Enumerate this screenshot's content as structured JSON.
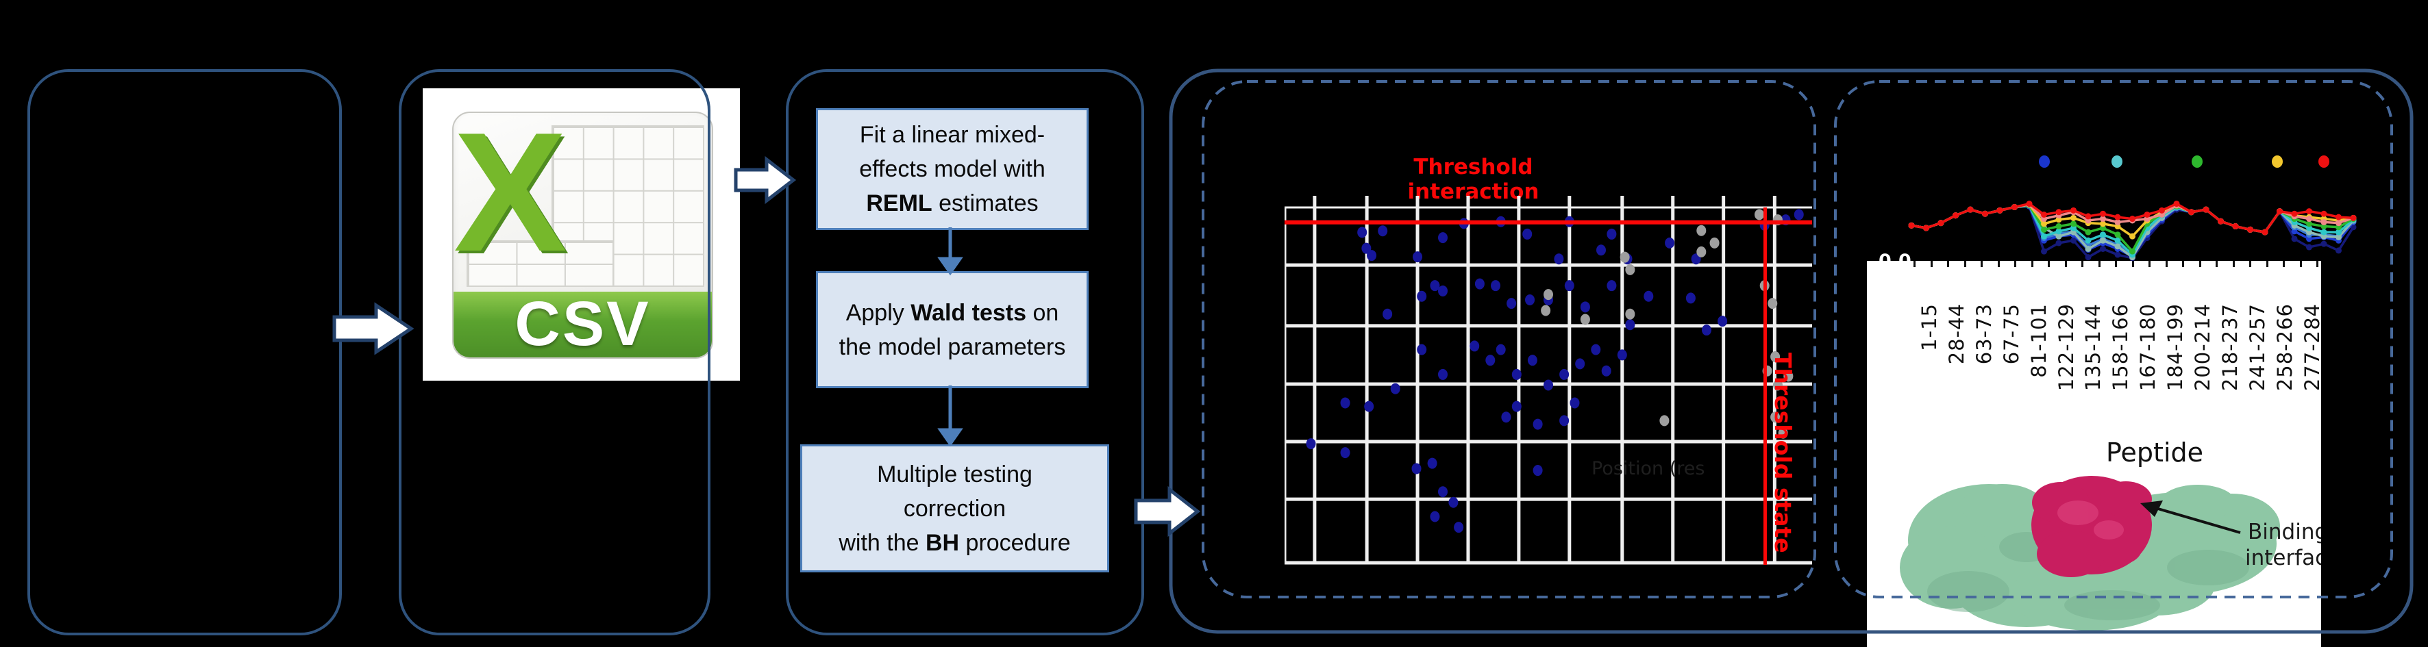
{
  "flowchart": {
    "steps": [
      {
        "name": "fit-model",
        "lines": [
          [
            {
              "t": "Fit a linear mixed-"
            }
          ],
          [
            {
              "t": "effects model with"
            }
          ],
          [
            {
              "t": "REML",
              "b": true
            },
            {
              "t": " estimates"
            }
          ]
        ]
      },
      {
        "name": "wald-tests",
        "lines": [
          [
            {
              "t": "Apply "
            },
            {
              "t": "Wald tests",
              "b": true
            },
            {
              "t": " on"
            }
          ],
          [
            {
              "t": "the model parameters"
            }
          ]
        ]
      },
      {
        "name": "multiple-testing",
        "lines": [
          [
            {
              "t": "Multiple testing"
            }
          ],
          [
            {
              "t": "correction"
            }
          ],
          [
            {
              "t": "with the "
            },
            {
              "t": "BH",
              "b": true
            },
            {
              "t": " procedure"
            }
          ]
        ]
      }
    ]
  },
  "csv_icon": {
    "letter": "X",
    "banner_label": "CSV"
  },
  "colors": {
    "box_border": "#2f537e",
    "container_border": "#36557f",
    "dashed_border": "#47699b",
    "flow_fill": "#dbe5f2",
    "flow_border": "#4e7fba",
    "threshold_red": "#fb0707",
    "dot_blue": "#16169b",
    "dot_gray": "#9f9f9f",
    "csv_green": "#5ba32f",
    "excel_x_green": "#76b82b",
    "protein_mint": "#8ec7a5",
    "protein_crimson": "#c81e5f"
  },
  "chart_data": [
    {
      "type": "scatter",
      "title": "Threshold interaction",
      "right_label": "Threshold state",
      "xlabel_faint": "Position (res",
      "grid": {
        "x": [
          0.057,
          0.156,
          0.252,
          0.348,
          0.444,
          0.54,
          0.64,
          0.736,
          0.832,
          0.929
        ],
        "y": [
          0.162,
          0.333,
          0.497,
          0.659,
          0.821
        ]
      },
      "threshold_lines": {
        "horizontal_y": 0.042,
        "vertical_x": 0.911
      },
      "series": [
        {
          "name": "interaction-points",
          "color": "#16169b",
          "points": [
            [
              0.147,
              0.07
            ],
            [
              0.186,
              0.066
            ],
            [
              0.34,
              0.045
            ],
            [
              0.41,
              0.04
            ],
            [
              0.54,
              0.04
            ],
            [
              0.3,
              0.085
            ],
            [
              0.46,
              0.075
            ],
            [
              0.62,
              0.075
            ],
            [
              0.73,
              0.1
            ],
            [
              0.91,
              0.05
            ],
            [
              0.95,
              0.035
            ],
            [
              0.975,
              0.02
            ],
            [
              0.155,
              0.115
            ],
            [
              0.165,
              0.135
            ],
            [
              0.252,
              0.139
            ],
            [
              0.6,
              0.12
            ],
            [
              0.65,
              0.145
            ],
            [
              0.78,
              0.145
            ],
            [
              0.52,
              0.145
            ],
            [
              0.195,
              0.3
            ],
            [
              0.26,
              0.25
            ],
            [
              0.285,
              0.22
            ],
            [
              0.3,
              0.235
            ],
            [
              0.37,
              0.215
            ],
            [
              0.4,
              0.22
            ],
            [
              0.43,
              0.27
            ],
            [
              0.465,
              0.26
            ],
            [
              0.5,
              0.26
            ],
            [
              0.54,
              0.22
            ],
            [
              0.57,
              0.28
            ],
            [
              0.62,
              0.22
            ],
            [
              0.655,
              0.33
            ],
            [
              0.69,
              0.25
            ],
            [
              0.77,
              0.255
            ],
            [
              0.83,
              0.32
            ],
            [
              0.8,
              0.345
            ],
            [
              0.26,
              0.4
            ],
            [
              0.3,
              0.47
            ],
            [
              0.36,
              0.39
            ],
            [
              0.39,
              0.43
            ],
            [
              0.41,
              0.4
            ],
            [
              0.44,
              0.47
            ],
            [
              0.47,
              0.43
            ],
            [
              0.5,
              0.5
            ],
            [
              0.53,
              0.47
            ],
            [
              0.56,
              0.44
            ],
            [
              0.59,
              0.4
            ],
            [
              0.61,
              0.46
            ],
            [
              0.64,
              0.415
            ],
            [
              0.55,
              0.55
            ],
            [
              0.44,
              0.56
            ],
            [
              0.42,
              0.59
            ],
            [
              0.48,
              0.61
            ],
            [
              0.53,
              0.6
            ],
            [
              0.115,
              0.55
            ],
            [
              0.21,
              0.51
            ],
            [
              0.16,
              0.56
            ],
            [
              0.05,
              0.665
            ],
            [
              0.115,
              0.69
            ],
            [
              0.25,
              0.735
            ],
            [
              0.28,
              0.72
            ],
            [
              0.3,
              0.8
            ],
            [
              0.32,
              0.83
            ],
            [
              0.285,
              0.87
            ],
            [
              0.33,
              0.9
            ],
            [
              0.48,
              0.74
            ]
          ]
        },
        {
          "name": "state-points",
          "color": "#9f9f9f",
          "points": [
            [
              0.9,
              0.02
            ],
            [
              0.935,
              0.035
            ],
            [
              0.79,
              0.065
            ],
            [
              0.815,
              0.1
            ],
            [
              0.79,
              0.125
            ],
            [
              0.645,
              0.14
            ],
            [
              0.655,
              0.175
            ],
            [
              0.5,
              0.245
            ],
            [
              0.495,
              0.29
            ],
            [
              0.57,
              0.315
            ],
            [
              0.655,
              0.3
            ],
            [
              0.91,
              0.22
            ],
            [
              0.925,
              0.27
            ],
            [
              0.93,
              0.42
            ],
            [
              0.915,
              0.46
            ],
            [
              0.935,
              0.5
            ],
            [
              0.955,
              0.475
            ],
            [
              0.93,
              0.59
            ],
            [
              0.945,
              0.635
            ],
            [
              0.72,
              0.6
            ]
          ]
        }
      ]
    },
    {
      "type": "line",
      "xlabel": "Peptide",
      "y_tick_label": "0.0",
      "legend_dot_colors": [
        "#1a35cc",
        "#58c9cf",
        "#2eb82e",
        "#f2c72e",
        "#ee1111"
      ],
      "categories": [
        "1-15",
        "28-44",
        "63-73",
        "67-75",
        "81-101",
        "122-129",
        "135-144",
        "158-166",
        "167-180",
        "184-199",
        "200-214",
        "218-237",
        "241-257",
        "258-266",
        "277-284"
      ],
      "series": [
        {
          "name": "series-navy",
          "color": "#151a7a",
          "values": [
            0.44,
            0.41,
            0.47,
            0.56,
            0.63,
            0.58,
            0.62,
            0.66,
            0.67,
            0.13,
            0.23,
            0.26,
            0.06,
            0.16,
            0.09,
            0.05,
            0.29,
            0.49,
            0.63,
            0.6,
            0.63,
            0.49,
            0.43,
            0.39,
            0.36,
            0.61,
            0.28,
            0.18,
            0.22,
            0.14,
            0.42
          ]
        },
        {
          "name": "series-blue",
          "color": "#1f3fd4",
          "values": [
            0.44,
            0.41,
            0.47,
            0.56,
            0.63,
            0.58,
            0.62,
            0.66,
            0.67,
            0.26,
            0.31,
            0.33,
            0.15,
            0.23,
            0.16,
            0.07,
            0.33,
            0.51,
            0.65,
            0.6,
            0.63,
            0.49,
            0.43,
            0.39,
            0.36,
            0.61,
            0.37,
            0.28,
            0.3,
            0.26,
            0.48
          ]
        },
        {
          "name": "series-dodger",
          "color": "#3a7bd5",
          "values": [
            0.44,
            0.41,
            0.47,
            0.56,
            0.63,
            0.58,
            0.62,
            0.66,
            0.68,
            0.29,
            0.34,
            0.37,
            0.2,
            0.28,
            0.21,
            0.08,
            0.37,
            0.53,
            0.65,
            0.6,
            0.63,
            0.49,
            0.43,
            0.39,
            0.36,
            0.61,
            0.42,
            0.33,
            0.33,
            0.31,
            0.49
          ]
        },
        {
          "name": "series-teal",
          "color": "#8fbcb4",
          "values": [
            0.44,
            0.41,
            0.47,
            0.56,
            0.63,
            0.58,
            0.62,
            0.66,
            0.68,
            0.41,
            0.31,
            0.36,
            0.16,
            0.26,
            0.19,
            0.06,
            0.36,
            0.53,
            0.66,
            0.6,
            0.63,
            0.49,
            0.43,
            0.39,
            0.36,
            0.61,
            0.44,
            0.36,
            0.31,
            0.3,
            0.5
          ]
        },
        {
          "name": "series-cyan",
          "color": "#2ec8c8",
          "values": [
            0.44,
            0.41,
            0.47,
            0.56,
            0.63,
            0.58,
            0.62,
            0.66,
            0.68,
            0.31,
            0.37,
            0.41,
            0.26,
            0.33,
            0.26,
            0.09,
            0.41,
            0.56,
            0.66,
            0.6,
            0.63,
            0.49,
            0.43,
            0.39,
            0.36,
            0.61,
            0.48,
            0.41,
            0.36,
            0.36,
            0.51
          ]
        },
        {
          "name": "series-green",
          "color": "#2eb82e",
          "values": [
            0.44,
            0.41,
            0.47,
            0.56,
            0.63,
            0.58,
            0.62,
            0.66,
            0.68,
            0.39,
            0.43,
            0.46,
            0.36,
            0.41,
            0.33,
            0.13,
            0.46,
            0.58,
            0.67,
            0.6,
            0.63,
            0.49,
            0.43,
            0.39,
            0.36,
            0.61,
            0.52,
            0.46,
            0.43,
            0.42,
            0.52
          ]
        },
        {
          "name": "series-gold",
          "color": "#f2c72e",
          "values": [
            0.44,
            0.41,
            0.47,
            0.56,
            0.63,
            0.58,
            0.62,
            0.66,
            0.69,
            0.46,
            0.51,
            0.53,
            0.47,
            0.46,
            0.43,
            0.31,
            0.5,
            0.6,
            0.68,
            0.6,
            0.63,
            0.49,
            0.43,
            0.39,
            0.36,
            0.61,
            0.56,
            0.54,
            0.52,
            0.5,
            0.53
          ]
        },
        {
          "name": "series-salmon",
          "color": "#ef8a8a",
          "values": [
            0.44,
            0.41,
            0.47,
            0.56,
            0.63,
            0.58,
            0.62,
            0.66,
            0.69,
            0.52,
            0.56,
            0.6,
            0.5,
            0.52,
            0.48,
            0.5,
            0.52,
            0.57,
            0.68,
            0.6,
            0.63,
            0.49,
            0.43,
            0.39,
            0.36,
            0.61,
            0.55,
            0.52,
            0.48,
            0.47,
            0.53
          ]
        },
        {
          "name": "series-red",
          "color": "#ee1111",
          "values": [
            0.44,
            0.41,
            0.47,
            0.56,
            0.63,
            0.58,
            0.62,
            0.66,
            0.7,
            0.57,
            0.6,
            0.62,
            0.55,
            0.58,
            0.54,
            0.52,
            0.57,
            0.62,
            0.7,
            0.6,
            0.63,
            0.49,
            0.43,
            0.39,
            0.36,
            0.61,
            0.58,
            0.61,
            0.58,
            0.54,
            0.53
          ]
        }
      ],
      "annotation": {
        "line1": "Binding",
        "line2": "interface"
      }
    }
  ]
}
